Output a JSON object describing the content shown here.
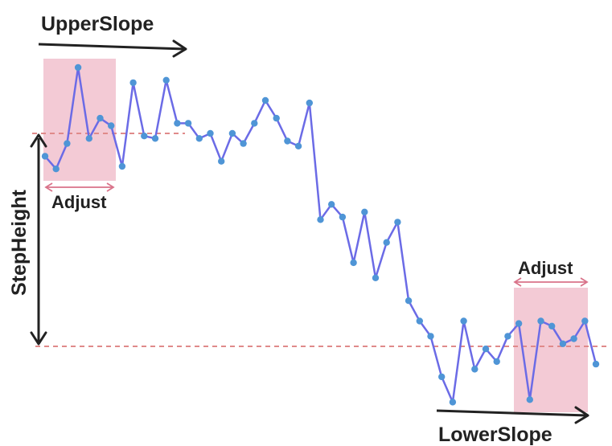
{
  "labels": {
    "upper_slope": "UpperSlope",
    "lower_slope": "LowerSlope",
    "step_height": "StepHeight",
    "adjust_left": "Adjust",
    "adjust_right": "Adjust"
  },
  "colors": {
    "line": "#6b6be6",
    "points": "#4f95d6",
    "adjust_box": "#f2c4d0",
    "guide_dash": "#e08a8a",
    "adjust_arrow": "#d9738a",
    "black_arrow": "#222222"
  },
  "chart_data": {
    "type": "line",
    "values": [
      75,
      70,
      80,
      110,
      82,
      90,
      87,
      71,
      104,
      83,
      82,
      105,
      88,
      88,
      82,
      84,
      73,
      84,
      80,
      88,
      97,
      90,
      81,
      79,
      96,
      50,
      56,
      51,
      33,
      53,
      27,
      41,
      49,
      18,
      10,
      4,
      -12,
      -22,
      10,
      -9,
      -1,
      -6,
      4,
      9,
      -21,
      10,
      8,
      1,
      3,
      10,
      -7
    ],
    "upper_level": 84,
    "lower_level": 0
  }
}
